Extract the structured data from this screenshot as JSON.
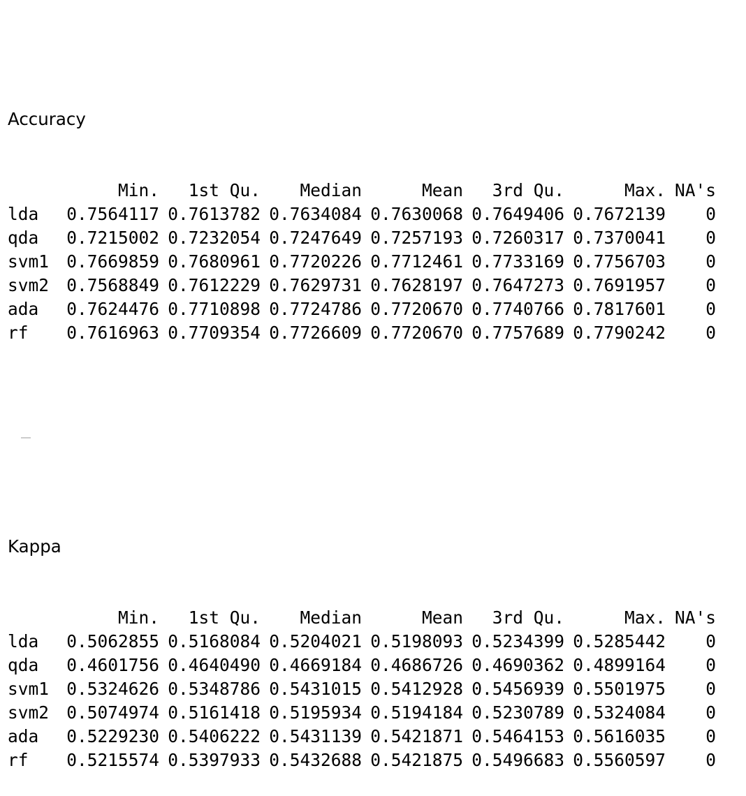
{
  "sections": [
    {
      "title": "Accuracy",
      "columns": [
        "Min.",
        "1st Qu.",
        "Median",
        "Mean",
        "3rd Qu.",
        "Max.",
        "NA's"
      ],
      "rows": [
        {
          "name": "lda",
          "values": [
            "0.7564117",
            "0.7613782",
            "0.7634084",
            "0.7630068",
            "0.7649406",
            "0.7672139",
            "0"
          ]
        },
        {
          "name": "qda",
          "values": [
            "0.7215002",
            "0.7232054",
            "0.7247649",
            "0.7257193",
            "0.7260317",
            "0.7370041",
            "0"
          ]
        },
        {
          "name": "svm1",
          "values": [
            "0.7669859",
            "0.7680961",
            "0.7720226",
            "0.7712461",
            "0.7733169",
            "0.7756703",
            "0"
          ]
        },
        {
          "name": "svm2",
          "values": [
            "0.7568849",
            "0.7612229",
            "0.7629731",
            "0.7628197",
            "0.7647273",
            "0.7691957",
            "0"
          ]
        },
        {
          "name": "ada",
          "values": [
            "0.7624476",
            "0.7710898",
            "0.7724786",
            "0.7720670",
            "0.7740766",
            "0.7817601",
            "0"
          ]
        },
        {
          "name": "rf",
          "values": [
            "0.7616963",
            "0.7709354",
            "0.7726609",
            "0.7720670",
            "0.7757689",
            "0.7790242",
            "0"
          ]
        }
      ]
    },
    {
      "title": "Kappa",
      "columns": [
        "Min.",
        "1st Qu.",
        "Median",
        "Mean",
        "3rd Qu.",
        "Max.",
        "NA's"
      ],
      "rows": [
        {
          "name": "lda",
          "values": [
            "0.5062855",
            "0.5168084",
            "0.5204021",
            "0.5198093",
            "0.5234399",
            "0.5285442",
            "0"
          ]
        },
        {
          "name": "qda",
          "values": [
            "0.4601756",
            "0.4640490",
            "0.4669184",
            "0.4686726",
            "0.4690362",
            "0.4899164",
            "0"
          ]
        },
        {
          "name": "svm1",
          "values": [
            "0.5324626",
            "0.5348786",
            "0.5431015",
            "0.5412928",
            "0.5456939",
            "0.5501975",
            "0"
          ]
        },
        {
          "name": "svm2",
          "values": [
            "0.5074974",
            "0.5161418",
            "0.5195934",
            "0.5194184",
            "0.5230789",
            "0.5324084",
            "0"
          ]
        },
        {
          "name": "ada",
          "values": [
            "0.5229230",
            "0.5406222",
            "0.5431139",
            "0.5421871",
            "0.5464153",
            "0.5616035",
            "0"
          ]
        },
        {
          "name": "rf",
          "values": [
            "0.5215574",
            "0.5397933",
            "0.5432688",
            "0.5421875",
            "0.5496683",
            "0.5560597",
            "0"
          ]
        }
      ]
    }
  ]
}
